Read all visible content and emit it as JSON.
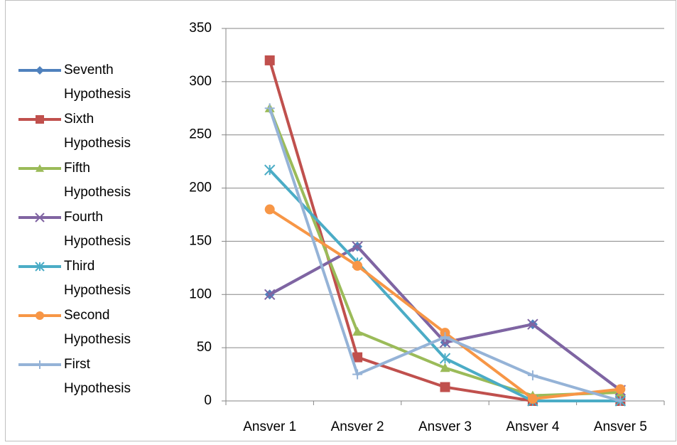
{
  "chart_data": {
    "type": "line",
    "categories": [
      "Ansver 1",
      "Ansver 2",
      "Ansver 3",
      "Ansver 4",
      "Ansver 5"
    ],
    "ylim": [
      0,
      350
    ],
    "yticks": [
      0,
      50,
      100,
      150,
      200,
      250,
      300,
      350
    ],
    "grid": true,
    "legend": "left",
    "series": [
      {
        "name": "Seventh Hypothesis",
        "color": "#4f81bd",
        "marker": "diamond",
        "values": [
          100,
          145,
          55,
          72,
          10
        ]
      },
      {
        "name": "Sixth Hypothesis",
        "color": "#c0504d",
        "marker": "square",
        "values": [
          320,
          41,
          13,
          0,
          0
        ]
      },
      {
        "name": "Fifth Hypothesis",
        "color": "#9bbb59",
        "marker": "triangle",
        "values": [
          275,
          65,
          31,
          5,
          8
        ]
      },
      {
        "name": "Fourth Hypothesis",
        "color": "#8064a2",
        "marker": "x",
        "values": [
          100,
          145,
          55,
          72,
          10
        ]
      },
      {
        "name": "Third Hypothesis",
        "color": "#4bacc6",
        "marker": "star",
        "values": [
          217,
          130,
          40,
          0,
          0
        ]
      },
      {
        "name": "Second Hypothesis",
        "color": "#f79646",
        "marker": "circle",
        "values": [
          180,
          127,
          64,
          2,
          11
        ]
      },
      {
        "name": "First Hypothesis",
        "color": "#95b3d7",
        "marker": "plus",
        "values": [
          275,
          25,
          60,
          24,
          0
        ]
      }
    ]
  }
}
